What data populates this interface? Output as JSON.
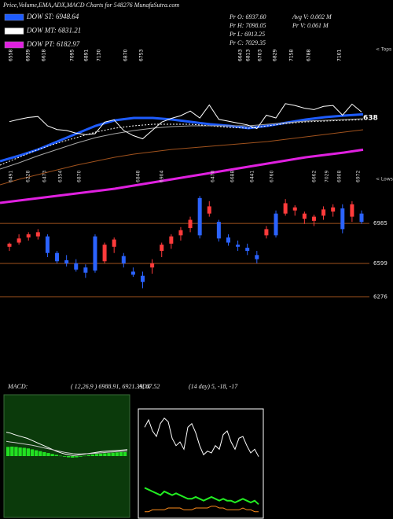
{
  "header": {
    "title": "Price,Volume,EMA,ADX,MACD Charts for 548276  MunafaSutra.com",
    "info": [
      "Pr  O: 6937.60",
      "Pr  H: 7098.05",
      "Pr  L: 6913.25",
      "Pr  C: 7029.35",
      "Avg V: 0.002  M",
      "Pr  V: 0.061  M"
    ]
  },
  "chart_data": [
    {
      "type": "candlestick",
      "open": [
        6760,
        6800,
        6850,
        6860,
        6860,
        6700,
        6630,
        6600,
        6560,
        6860,
        6620,
        6760,
        6670,
        6520,
        6480,
        6560,
        6720,
        6790,
        6870,
        6940,
        7230,
        7080,
        7000,
        6850,
        6780,
        6750,
        6680,
        6870,
        7080,
        7080,
        7110,
        7030,
        7010,
        7060,
        7100,
        7130,
        7050,
        7080
      ],
      "high": [
        6800,
        6880,
        6900,
        6930,
        6880,
        6720,
        6680,
        6640,
        6590,
        6880,
        6800,
        6850,
        6700,
        6560,
        6520,
        6640,
        6800,
        6880,
        6950,
        7050,
        7250,
        7200,
        7020,
        6880,
        6820,
        6790,
        6720,
        6960,
        7110,
        7220,
        7160,
        7100,
        7070,
        7150,
        7170,
        7170,
        7200,
        7110
      ],
      "low": [
        6720,
        6780,
        6820,
        6830,
        6660,
        6600,
        6570,
        6520,
        6460,
        6510,
        6600,
        6700,
        6560,
        6470,
        6360,
        6500,
        6660,
        6740,
        6820,
        6900,
        6840,
        7050,
        6810,
        6770,
        6720,
        6680,
        6600,
        6840,
        6850,
        7060,
        7060,
        6980,
        6960,
        7020,
        7050,
        6890,
        7000,
        6980
      ],
      "close": [
        6790,
        6840,
        6880,
        6900,
        6700,
        6620,
        6600,
        6540,
        6510,
        6530,
        6780,
        6830,
        6600,
        6490,
        6420,
        6600,
        6780,
        6860,
        6920,
        7020,
        6870,
        7150,
        6840,
        6800,
        6760,
        6720,
        6640,
        6930,
        6870,
        7180,
        7140,
        7080,
        7050,
        7120,
        7140,
        6930,
        7170,
        7000
      ],
      "up_color": "#ff3b3b",
      "down_color": "#2b63ff",
      "close_line_color": "#ffffff",
      "ylim": [
        6030,
        7320
      ],
      "yticks": [
        6985,
        6599,
        6276
      ],
      "grid_color": "#a0521d",
      "y2lim": [
        5000,
        8400
      ],
      "series": [
        {
          "name": "DOW ST: 6948.64",
          "color": "#1e5cff",
          "axis": "y2",
          "values": [
            5935,
            6054,
            6190,
            6360,
            6530,
            6700,
            6819,
            6870,
            6870,
            6836,
            6785,
            6734,
            6700,
            6649,
            6700,
            6768,
            6836,
            6887,
            6921,
            6949
          ]
        },
        {
          "name": "DOW MT: 6831.21",
          "color": "#ffffff",
          "axis": "y2",
          "dashed": true,
          "values": [
            5850,
            6020,
            6190,
            6326,
            6445,
            6564,
            6649,
            6700,
            6734,
            6734,
            6734,
            6700,
            6666,
            6649,
            6700,
            6751,
            6785,
            6802,
            6819,
            6831
          ]
        },
        {
          "name": "DOW PT: 6182.97",
          "color": "#e020e0",
          "axis": "y2",
          "values": [
            5034,
            5085,
            5136,
            5187,
            5238,
            5289,
            5340,
            5408,
            5476,
            5544,
            5612,
            5680,
            5748,
            5816,
            5884,
            5952,
            6020,
            6071,
            6122,
            6183
          ]
        },
        {
          "color": "#a8a8a8",
          "axis": "y2",
          "values": [
            5765,
            5901,
            6054,
            6190,
            6326,
            6445,
            6530,
            6598,
            6649,
            6683,
            6700,
            6700,
            6700,
            6700,
            6734,
            6768,
            6802,
            6819,
            6836,
            6853
          ]
        },
        {
          "color": "#a0521d",
          "axis": "y2",
          "values": [
            5425,
            5544,
            5646,
            5748,
            5850,
            5935,
            6020,
            6088,
            6139,
            6190,
            6224,
            6258,
            6292,
            6326,
            6360,
            6411,
            6462,
            6513,
            6564,
            6615
          ]
        }
      ],
      "top_labels": [
        "6558",
        "6939",
        "6618",
        "7095",
        "6891",
        "7130",
        "6870",
        "6753",
        "6643",
        "6813",
        "6703",
        "6829",
        "7158",
        "6788",
        "7101"
      ],
      "low_labels": [
        "6491",
        "6228",
        "6473",
        "6354",
        "6870",
        "6848",
        "6904",
        "6470",
        "6688",
        "6441",
        "6760",
        "6662",
        "7029",
        "6908",
        "6972"
      ],
      "annotations": [
        "< Tops",
        "638",
        "< Lows"
      ]
    },
    {
      "type": "macd",
      "title": "MACD:",
      "subtitle": "( 12,26,9 ) 6988.91,   6921.39,   67.52",
      "ylim": [
        -200,
        200
      ],
      "background": "#0b3a0b",
      "histogram": {
        "color": "#22e022",
        "values": [
          30,
          31,
          30,
          28,
          27,
          25,
          22,
          19,
          16,
          13,
          10,
          7,
          4,
          1,
          -2,
          -4,
          -5,
          -4,
          -2,
          1,
          3,
          5,
          7,
          8,
          9,
          10,
          11,
          12,
          13,
          13
        ]
      },
      "series": [
        {
          "color": "#ffffff",
          "values": [
            78,
            75,
            70,
            66,
            62,
            58,
            52,
            46,
            40,
            34,
            28,
            22,
            16,
            11,
            7,
            4,
            2,
            3,
            5,
            7,
            9,
            11,
            13,
            15,
            16,
            17,
            18,
            19,
            20,
            21
          ]
        },
        {
          "color": "#c8c8c8",
          "values": [
            48,
            46,
            44,
            42,
            40,
            38,
            36,
            33,
            30,
            27,
            24,
            21,
            18,
            15,
            12,
            10,
            8,
            7,
            7,
            8,
            8,
            9,
            10,
            11,
            12,
            13,
            14,
            15,
            16,
            17
          ]
        }
      ]
    },
    {
      "type": "adx",
      "title": "ADX",
      "subtitle": "(14  day) 5,  -18,  -17",
      "ylim": [
        0,
        60
      ],
      "series": [
        {
          "color": "#ffffff",
          "values": [
            50,
            54,
            48,
            45,
            52,
            55,
            53,
            44,
            40,
            42,
            38,
            50,
            52,
            47,
            40,
            35,
            37,
            36,
            40,
            38,
            46,
            48,
            42,
            38,
            44,
            45,
            40,
            36,
            38,
            34
          ]
        },
        {
          "color": "#22ee22",
          "values": [
            17,
            16,
            15,
            14,
            13,
            15,
            14,
            13,
            14,
            13,
            12,
            11,
            11,
            12,
            11,
            10,
            11,
            12,
            11,
            10,
            11,
            10,
            10,
            9,
            10,
            11,
            10,
            9,
            10,
            8
          ]
        },
        {
          "color": "#ff8c1a",
          "values": [
            4,
            4,
            5,
            5,
            5,
            5,
            6,
            6,
            6,
            6,
            5,
            5,
            5,
            6,
            6,
            6,
            6,
            7,
            7,
            6,
            6,
            5,
            5,
            5,
            5,
            6,
            5,
            5,
            4,
            4
          ]
        }
      ]
    }
  ]
}
